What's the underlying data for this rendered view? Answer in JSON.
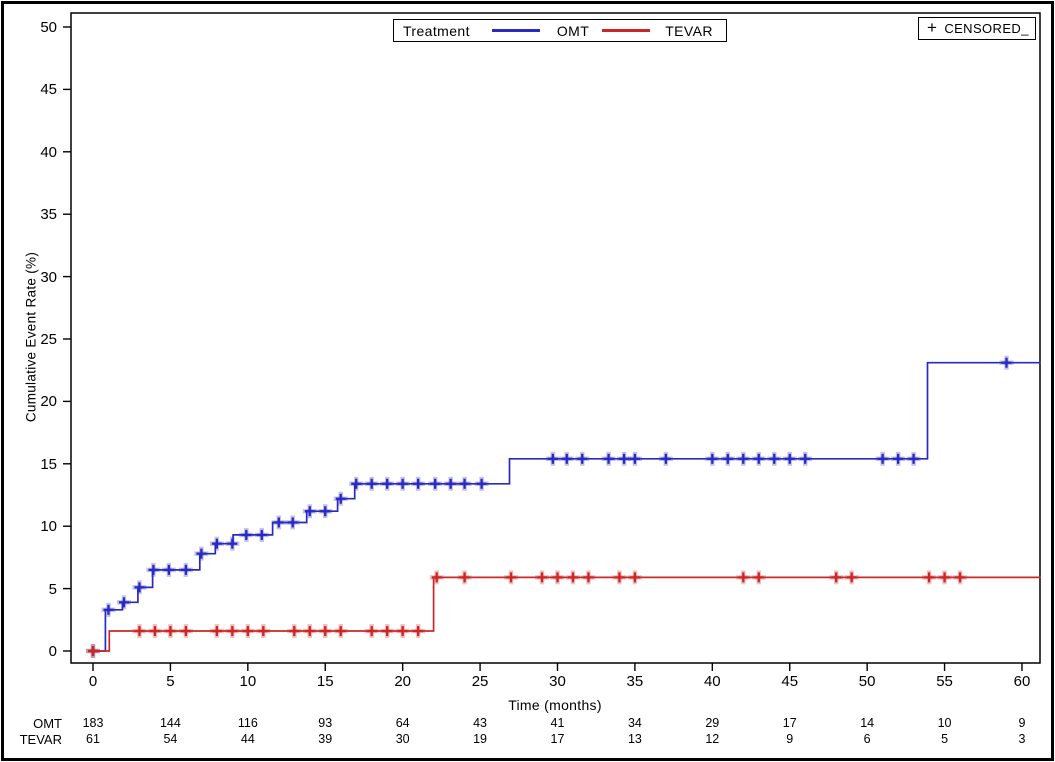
{
  "figure": {
    "background": "#ffffff",
    "border_color": "#000000"
  },
  "legend": {
    "title": "Treatment",
    "entries": [
      {
        "label": "OMT",
        "color": "#2a2ac0"
      },
      {
        "label": "TEVAR",
        "color": "#cc2727"
      }
    ]
  },
  "censored_legend": {
    "symbol": "+",
    "label": "CENSORED_"
  },
  "chart_data": {
    "type": "line",
    "subtype": "kaplan-meier-cumulative-incidence-step",
    "title": "",
    "xlabel": "Time (months)",
    "ylabel": "Cumulative Event Rate (%)",
    "xlim": [
      -1.5,
      61.2
    ],
    "ylim": [
      -1,
      51.1
    ],
    "x_ticks": [
      0,
      5,
      10,
      15,
      20,
      25,
      30,
      35,
      40,
      45,
      50,
      55,
      60
    ],
    "y_ticks": [
      0,
      5,
      10,
      15,
      20,
      25,
      30,
      35,
      40,
      45,
      50
    ],
    "grid": false,
    "legend_position": "top-center",
    "series": [
      {
        "name": "OMT",
        "color": "#2a2ac0",
        "end_time": 61.2,
        "steps": [
          [
            0,
            0
          ],
          [
            0.8,
            3.3
          ],
          [
            1.9,
            3.9
          ],
          [
            2.9,
            5.1
          ],
          [
            3.85,
            6.5
          ],
          [
            6.9,
            7.8
          ],
          [
            7.9,
            8.6
          ],
          [
            9.05,
            9.3
          ],
          [
            11.6,
            10.3
          ],
          [
            13.8,
            11.2
          ],
          [
            15.8,
            12.2
          ],
          [
            16.9,
            13.4
          ],
          [
            26.9,
            15.4
          ],
          [
            53.9,
            23.1
          ]
        ],
        "censors": [
          [
            0,
            0
          ],
          [
            1,
            3.3
          ],
          [
            2,
            3.9
          ],
          [
            3,
            5.1
          ],
          [
            3.9,
            6.5
          ],
          [
            4.9,
            6.5
          ],
          [
            6,
            6.5
          ],
          [
            7,
            7.8
          ],
          [
            8,
            8.6
          ],
          [
            9,
            8.6
          ],
          [
            9.9,
            9.3
          ],
          [
            10.9,
            9.3
          ],
          [
            12,
            10.3
          ],
          [
            12.9,
            10.3
          ],
          [
            14,
            11.2
          ],
          [
            15,
            11.2
          ],
          [
            16,
            12.2
          ],
          [
            17,
            13.4
          ],
          [
            18,
            13.4
          ],
          [
            19,
            13.4
          ],
          [
            20,
            13.4
          ],
          [
            21,
            13.4
          ],
          [
            22.1,
            13.4
          ],
          [
            23.1,
            13.4
          ],
          [
            24,
            13.4
          ],
          [
            25.1,
            13.4
          ],
          [
            29.7,
            15.4
          ],
          [
            30.6,
            15.4
          ],
          [
            31.6,
            15.4
          ],
          [
            33.3,
            15.4
          ],
          [
            34.3,
            15.4
          ],
          [
            35,
            15.4
          ],
          [
            37,
            15.4
          ],
          [
            40,
            15.4
          ],
          [
            41,
            15.4
          ],
          [
            42,
            15.4
          ],
          [
            43,
            15.4
          ],
          [
            44,
            15.4
          ],
          [
            45,
            15.4
          ],
          [
            46,
            15.4
          ],
          [
            51,
            15.4
          ],
          [
            52,
            15.4
          ],
          [
            53,
            15.4
          ],
          [
            59,
            23.1
          ]
        ]
      },
      {
        "name": "TEVAR",
        "color": "#cc2727",
        "end_time": 61.2,
        "steps": [
          [
            0,
            0
          ],
          [
            1.05,
            1.6
          ],
          [
            22,
            5.9
          ]
        ],
        "censors": [
          [
            0,
            0
          ],
          [
            3,
            1.6
          ],
          [
            4,
            1.6
          ],
          [
            5,
            1.6
          ],
          [
            6,
            1.6
          ],
          [
            8,
            1.6
          ],
          [
            9,
            1.6
          ],
          [
            10,
            1.6
          ],
          [
            11,
            1.6
          ],
          [
            13,
            1.6
          ],
          [
            14,
            1.6
          ],
          [
            15,
            1.6
          ],
          [
            16,
            1.6
          ],
          [
            18,
            1.6
          ],
          [
            19,
            1.6
          ],
          [
            20,
            1.6
          ],
          [
            21,
            1.6
          ],
          [
            22.2,
            5.9
          ],
          [
            24,
            5.9
          ],
          [
            27,
            5.9
          ],
          [
            29,
            5.9
          ],
          [
            30,
            5.9
          ],
          [
            31,
            5.9
          ],
          [
            32,
            5.9
          ],
          [
            34,
            5.9
          ],
          [
            35,
            5.9
          ],
          [
            42,
            5.9
          ],
          [
            43,
            5.9
          ],
          [
            48,
            5.9
          ],
          [
            49,
            5.9
          ],
          [
            54,
            5.9
          ],
          [
            55,
            5.9
          ],
          [
            56,
            5.9
          ]
        ]
      }
    ],
    "risk_table": {
      "times": [
        0,
        5,
        10,
        15,
        20,
        25,
        30,
        35,
        40,
        45,
        50,
        55,
        60
      ],
      "rows": [
        {
          "label": "OMT",
          "values": [
            183,
            144,
            116,
            93,
            64,
            43,
            41,
            34,
            29,
            17,
            14,
            10,
            9
          ]
        },
        {
          "label": "TEVAR",
          "values": [
            61,
            54,
            44,
            39,
            30,
            19,
            17,
            13,
            12,
            9,
            6,
            5,
            3
          ]
        }
      ]
    }
  }
}
